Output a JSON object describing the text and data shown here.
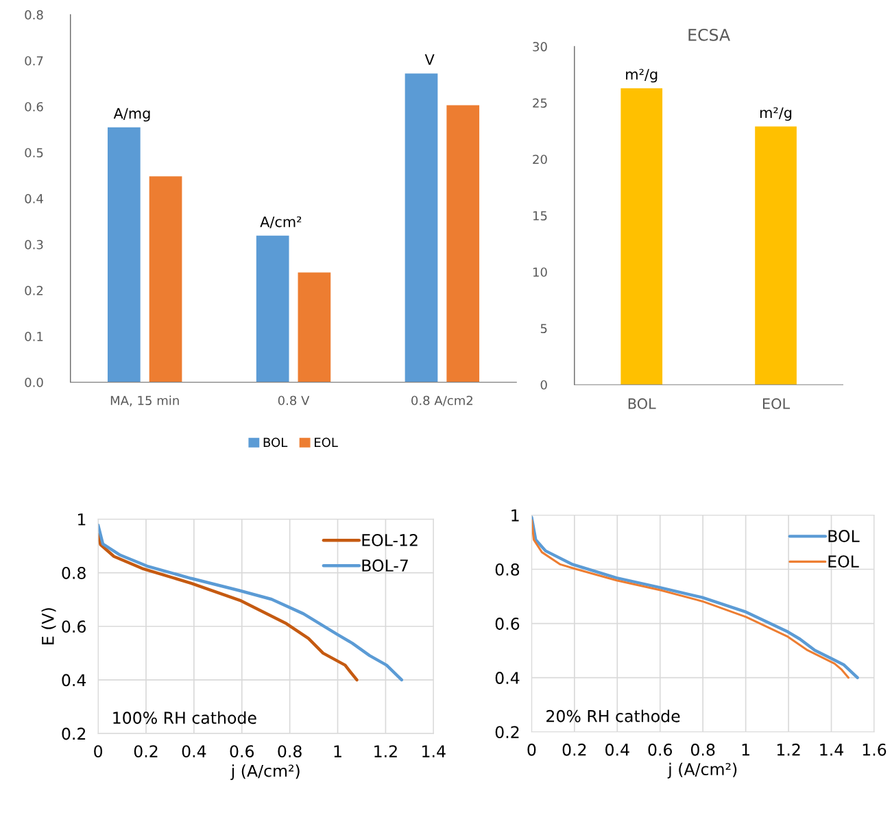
{
  "chart_data": [
    {
      "type": "bar",
      "categories": [
        "MA, 15 min",
        "0.8 V",
        "0.8 A/cm2"
      ],
      "series": [
        {
          "name": "BOL",
          "color": "#5b9bd5",
          "values": [
            0.555,
            0.319,
            0.672
          ]
        },
        {
          "name": "EOL",
          "color": "#ed7d31",
          "values": [
            0.448,
            0.239,
            0.603
          ]
        }
      ],
      "ylim": [
        0,
        0.8
      ],
      "yticks": [
        {
          "value": 0,
          "label": "0.0"
        },
        0.1,
        0.2,
        0.3,
        0.4,
        0.5,
        0.6,
        0.7,
        0.8
      ],
      "annotations": [
        "A/mg",
        "A/cm²",
        "V"
      ],
      "legend": "bottom",
      "grid": false
    },
    {
      "type": "bar",
      "title": "ECSA",
      "categories": [
        "BOL",
        "EOL"
      ],
      "series": [
        {
          "color": "#ffc000",
          "values": [
            26.3,
            22.9
          ]
        }
      ],
      "ylim": [
        0,
        30
      ],
      "yticks": [
        0,
        5,
        10,
        15,
        20,
        25,
        30
      ],
      "annotations": [
        {
          "text": "m²/g",
          "x": "BOL",
          "y": 26.3
        },
        {
          "text": "m²/g",
          "x": "EOL",
          "y": 22.9
        }
      ],
      "grid": false
    },
    {
      "type": "line",
      "xlabel": "j (A/cm²)",
      "ylabel": "E (V)",
      "series": [
        {
          "name": "EOL-12",
          "color": "#c55a11",
          "x": [
            0,
            0.01,
            0.066,
            0.184,
            0.388,
            0.592,
            0.786,
            0.878,
            0.939,
            1.031,
            1.051,
            1.08
          ],
          "values": [
            0.943,
            0.905,
            0.861,
            0.816,
            0.761,
            0.697,
            0.61,
            0.555,
            0.5,
            0.455,
            0.432,
            0.4
          ]
        },
        {
          "name": "BOL-7",
          "color": "#5b9bd5",
          "x": [
            0,
            0.02,
            0.092,
            0.204,
            0.388,
            0.592,
            0.724,
            0.857,
            1.0,
            1.061,
            1.133,
            1.204,
            1.267
          ],
          "values": [
            0.978,
            0.907,
            0.866,
            0.825,
            0.779,
            0.733,
            0.701,
            0.647,
            0.569,
            0.537,
            0.491,
            0.455,
            0.4
          ]
        }
      ],
      "xlim": [
        0,
        1.4
      ],
      "xticks": [
        0,
        0.2,
        0.4,
        0.6,
        0.8,
        1,
        1.2,
        1.4
      ],
      "ylim": [
        0.2,
        1
      ],
      "yticks": [
        0.2,
        0.4,
        0.6,
        0.8,
        1
      ],
      "annotations": [
        "100% RH cathode"
      ],
      "legend": "top right",
      "grid": true,
      "marker": "none",
      "line_style": "solid"
    },
    {
      "type": "line",
      "xlabel": "j (A/cm²)",
      "series": [
        {
          "name": "BOL",
          "color": "#5b9bd5",
          "x": [
            0,
            0.019,
            0.065,
            0.191,
            0.397,
            0.602,
            0.797,
            1.002,
            1.197,
            1.254,
            1.323,
            1.402,
            1.459,
            1.522
          ],
          "values": [
            0.992,
            0.909,
            0.868,
            0.818,
            0.768,
            0.732,
            0.696,
            0.642,
            0.569,
            0.542,
            0.501,
            0.47,
            0.447,
            0.4
          ]
        },
        {
          "name": "EOL",
          "color": "#ed7d31",
          "x": [
            0,
            0.01,
            0.048,
            0.134,
            0.202,
            0.397,
            0.602,
            0.797,
            1.002,
            1.197,
            1.289,
            1.415,
            1.449,
            1.48
          ],
          "values": [
            0.981,
            0.909,
            0.863,
            0.818,
            0.802,
            0.759,
            0.723,
            0.682,
            0.624,
            0.551,
            0.501,
            0.452,
            0.429,
            0.4
          ]
        }
      ],
      "xlim": [
        0,
        1.6
      ],
      "xticks": [
        0,
        0.2,
        0.4,
        0.6,
        0.8,
        1,
        1.2,
        1.4,
        1.6
      ],
      "ylim": [
        0.2,
        1
      ],
      "yticks": [
        0.2,
        0.4,
        0.6,
        0.8,
        1
      ],
      "annotations": [
        "20% RH cathode"
      ],
      "legend": "top right",
      "grid": true,
      "marker": "none",
      "line_style": "solid"
    }
  ]
}
